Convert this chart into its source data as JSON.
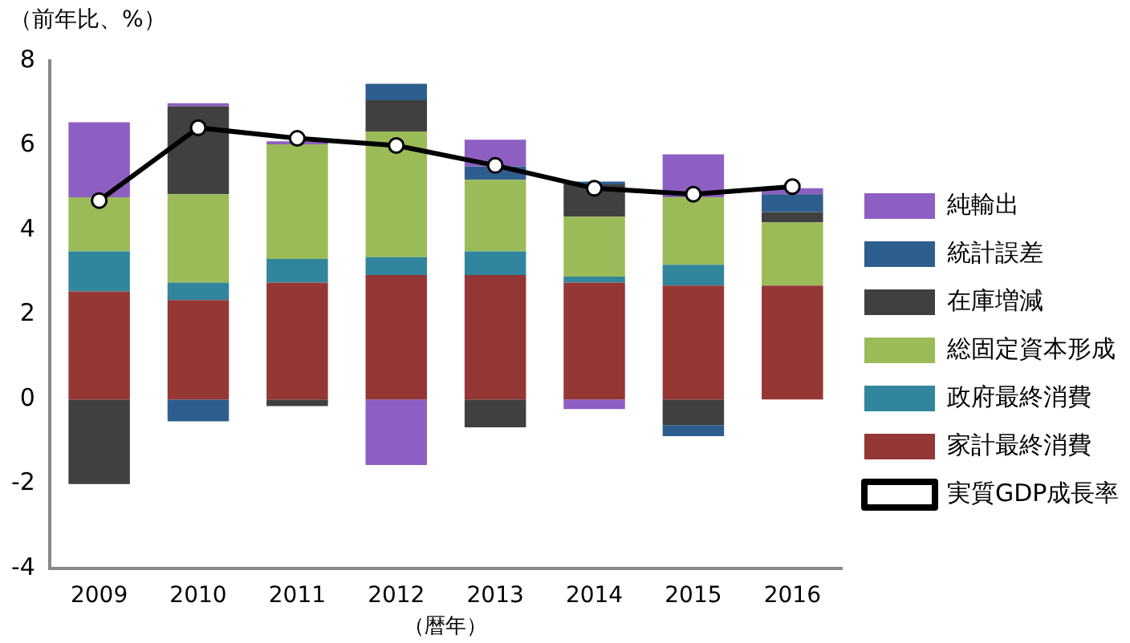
{
  "chart_data": {
    "type": "bar",
    "stacked": true,
    "ylabel": "（前年比、%）",
    "xlabel": "（暦年）",
    "categories": [
      "2009",
      "2010",
      "2011",
      "2012",
      "2013",
      "2014",
      "2015",
      "2016"
    ],
    "ylim": [
      -4,
      8
    ],
    "yticks": [
      -4,
      -2,
      0,
      2,
      4,
      6,
      8
    ],
    "grid": false,
    "legend": "right",
    "series": [
      {
        "name": "家計最終消費",
        "color": "#953735",
        "values": [
          2.55,
          2.35,
          2.76,
          2.94,
          2.94,
          2.76,
          2.69,
          2.69
        ]
      },
      {
        "name": "政府最終消費",
        "color": "#31859c",
        "values": [
          0.95,
          0.41,
          0.56,
          0.42,
          0.56,
          0.14,
          0.49,
          0
        ]
      },
      {
        "name": "総固定資本形成",
        "color": "#9bbb59",
        "values": [
          1.28,
          2.09,
          2.71,
          2.97,
          1.69,
          1.42,
          1.6,
          1.49
        ]
      },
      {
        "name": "在庫増減",
        "color": "#404040",
        "values": [
          -2.0,
          2.08,
          -0.16,
          0.74,
          -0.66,
          0.76,
          -0.61,
          0.25
        ]
      },
      {
        "name": "統計誤差",
        "color": "#2e5e8e",
        "values": [
          0,
          -0.52,
          0,
          0.39,
          0.32,
          0.07,
          -0.26,
          0.42
        ]
      },
      {
        "name": "純輸出",
        "color": "#8e5fc2",
        "values": [
          1.77,
          0.07,
          0.07,
          -1.55,
          0.63,
          -0.23,
          1.01,
          0.14
        ]
      },
      {
        "name": "実質GDP成長率",
        "type": "line",
        "color": "#000000",
        "marker": "circle",
        "values": [
          4.7,
          6.42,
          6.17,
          6.0,
          5.53,
          4.99,
          4.85,
          5.03
        ]
      }
    ]
  }
}
